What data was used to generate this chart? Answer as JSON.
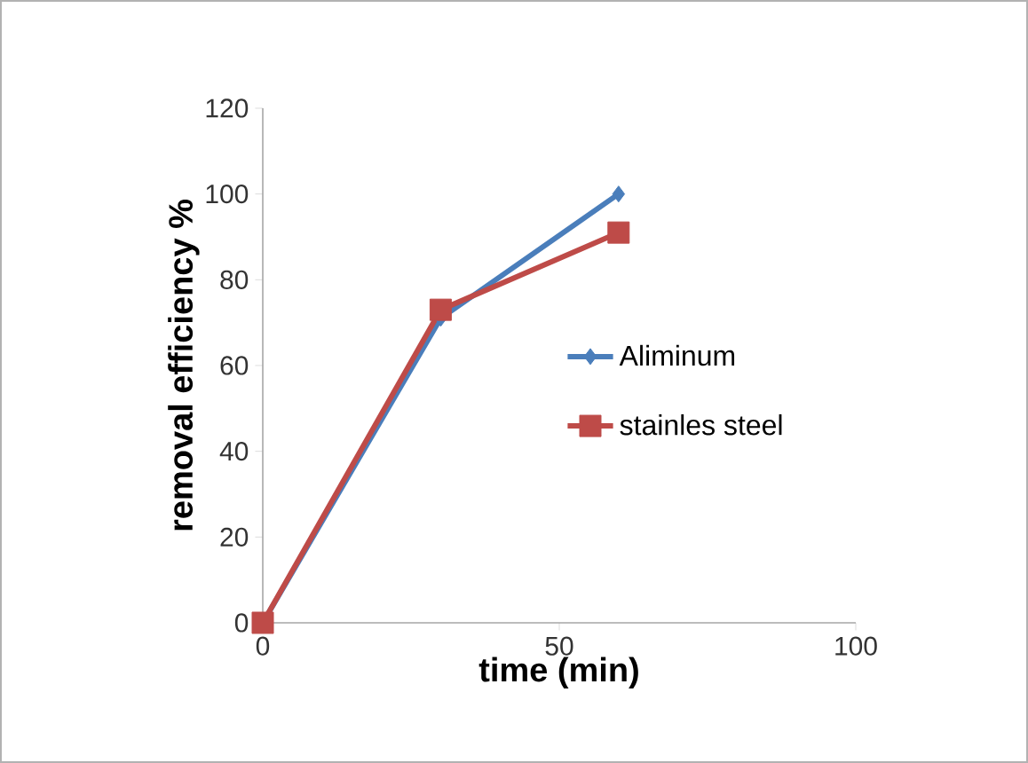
{
  "chart_data": {
    "type": "line",
    "xlabel": "time (min)",
    "ylabel": "removal efficiency %",
    "xlim": [
      0,
      100
    ],
    "xticks": [
      0,
      50,
      100
    ],
    "ylim": [
      0,
      120
    ],
    "yticks": [
      0,
      20,
      40,
      60,
      80,
      100,
      120
    ],
    "grid": false,
    "legend": "right",
    "series": [
      {
        "name": "Aliminum",
        "color": "#4a7ebb",
        "marker": "diamond",
        "x": [
          0,
          30,
          60
        ],
        "values": [
          0,
          71,
          100
        ]
      },
      {
        "name": "stainles steel",
        "color": "#be4b48",
        "marker": "square",
        "x": [
          0,
          30,
          60
        ],
        "values": [
          0,
          73,
          91
        ]
      }
    ]
  }
}
